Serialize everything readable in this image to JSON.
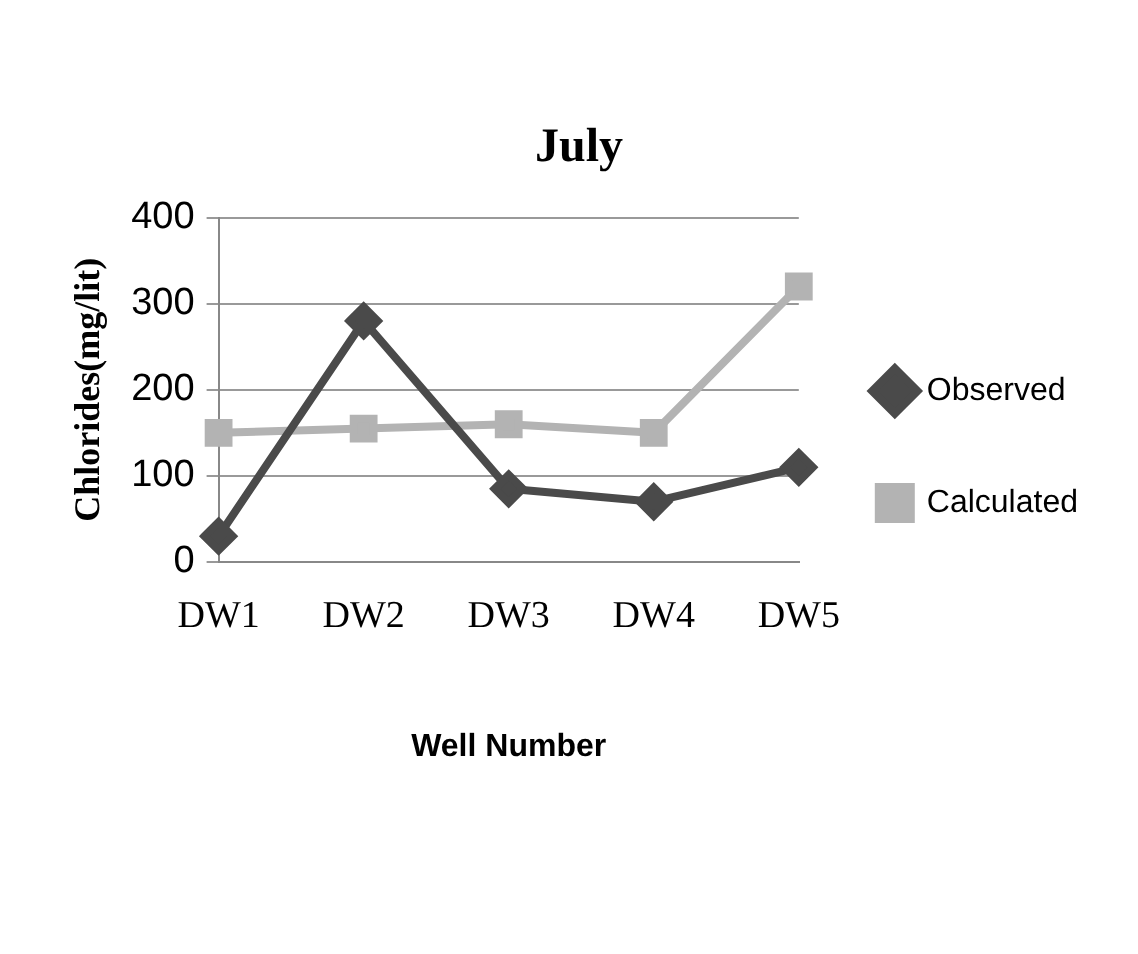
{
  "chart_data": {
    "type": "line",
    "title": "July",
    "xlabel": "Well Number",
    "ylabel": "Chlorides(mg/lit)",
    "categories": [
      "DW1",
      "DW2",
      "DW3",
      "DW4",
      "DW5"
    ],
    "series": [
      {
        "name": "Observed",
        "color": "#4a4a4a",
        "marker": "diamond",
        "values": [
          30,
          280,
          85,
          70,
          110
        ]
      },
      {
        "name": "Calculated",
        "color": "#b3b3b3",
        "marker": "square",
        "values": [
          150,
          155,
          160,
          150,
          320
        ]
      }
    ],
    "ylim": [
      0,
      400
    ],
    "yticks": [
      0,
      100,
      200,
      300,
      400
    ],
    "grid": "y",
    "legend": "right",
    "line_style": "solid"
  }
}
